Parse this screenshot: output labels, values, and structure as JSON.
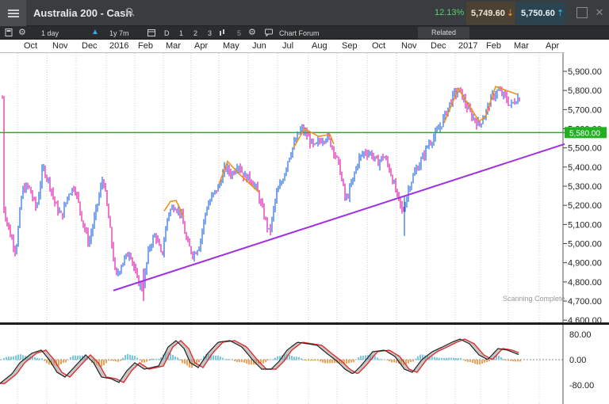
{
  "titlebar": {
    "title": "Australia 200 - Cash",
    "change_pct": "12.13%",
    "sell_price": "5,749.60",
    "buy_price": "5,750.60"
  },
  "toolbar": {
    "interval": "1 day",
    "range": "1y 7m",
    "d": "D",
    "n1": "1",
    "n2": "2",
    "n3": "3",
    "n5": "5",
    "chart_forum": "Chart Forum",
    "related": "Related"
  },
  "months": [
    "Oct",
    "Nov",
    "Dec",
    "2016",
    "Feb",
    "Mar",
    "Apr",
    "May",
    "Jun",
    "Jul",
    "Aug",
    "Sep",
    "Oct",
    "Nov",
    "Dec",
    "2017",
    "Feb",
    "Mar",
    "Apr"
  ],
  "price_axis": [
    "5,900.00",
    "5,800.00",
    "5,700.00",
    "5,600.00",
    "5,500.00",
    "5,400.00",
    "5,300.00",
    "5,200.00",
    "5,100.00",
    "5,000.00",
    "4,900.00",
    "4,800.00",
    "4,700.00",
    "4,600.00"
  ],
  "support_level": "5,580.00",
  "status": "Scanning Complete",
  "osc_axis": [
    "80.00",
    "0.00",
    "-80.00"
  ],
  "colors": {
    "up": "#2a6fe0",
    "down": "#e020b0",
    "support": "#22b022",
    "trend": "#a030e0",
    "pattern": "#f0901a"
  }
}
